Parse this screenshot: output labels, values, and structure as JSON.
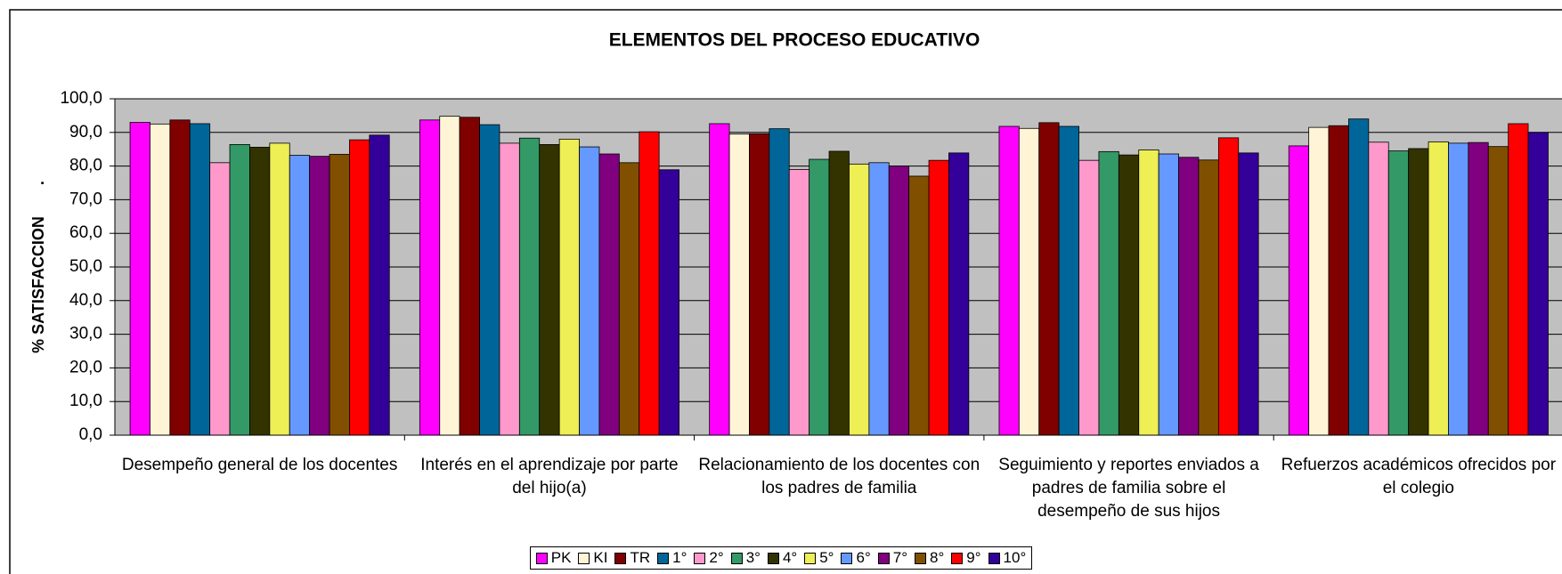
{
  "chart_data": {
    "type": "bar",
    "title": "ELEMENTOS DEL PROCESO EDUCATIVO",
    "y_label": "% SATISFACCION       .",
    "categories": [
      "Desempeño general de los docentes",
      "Interés en el aprendizaje por parte del hijo(a)",
      "Relacionamiento de los docentes con los padres de familia",
      "Seguimiento y reportes enviados a padres de familia sobre el desempeño de sus hijos",
      "Refuerzos académicos ofrecidos por el colegio"
    ],
    "series": [
      {
        "name": "PK",
        "color": "#ff00ff",
        "values": [
          93.0,
          93.7,
          92.6,
          91.8,
          86.0
        ]
      },
      {
        "name": "KI",
        "color": "#fff5d6",
        "values": [
          92.5,
          94.8,
          89.5,
          91.2,
          91.5
        ]
      },
      {
        "name": "TR",
        "color": "#800000",
        "values": [
          93.7,
          94.5,
          89.6,
          92.9,
          92.0
        ]
      },
      {
        "name": "1°",
        "color": "#006699",
        "values": [
          92.6,
          92.3,
          91.1,
          91.8,
          94.0
        ]
      },
      {
        "name": "2°",
        "color": "#ff99cc",
        "values": [
          81.0,
          86.8,
          79.0,
          81.7,
          87.1
        ]
      },
      {
        "name": "3°",
        "color": "#339966",
        "values": [
          86.4,
          88.3,
          82.0,
          84.3,
          84.5
        ]
      },
      {
        "name": "4°",
        "color": "#333300",
        "values": [
          85.6,
          86.4,
          84.4,
          83.3,
          85.2
        ]
      },
      {
        "name": "5°",
        "color": "#eeee55",
        "values": [
          86.8,
          88.0,
          80.6,
          84.8,
          87.2
        ]
      },
      {
        "name": "6°",
        "color": "#6699ff",
        "values": [
          83.2,
          85.7,
          81.0,
          83.6,
          86.8
        ]
      },
      {
        "name": "7°",
        "color": "#800080",
        "values": [
          82.9,
          83.6,
          80.0,
          82.6,
          87.0
        ]
      },
      {
        "name": "8°",
        "color": "#805000",
        "values": [
          83.5,
          81.0,
          77.0,
          81.8,
          85.8
        ]
      },
      {
        "name": "9°",
        "color": "#ff0000",
        "values": [
          87.8,
          90.2,
          81.7,
          88.4,
          92.6
        ]
      },
      {
        "name": "10°",
        "color": "#330099",
        "values": [
          89.2,
          78.9,
          83.9,
          83.9,
          90.0
        ]
      }
    ],
    "ylim": [
      0,
      100
    ],
    "yticks": [
      {
        "value": 0,
        "label": "0,0"
      },
      {
        "value": 10,
        "label": "10,0"
      },
      {
        "value": 20,
        "label": "20,0"
      },
      {
        "value": 30,
        "label": "30,0"
      },
      {
        "value": 40,
        "label": "40,0"
      },
      {
        "value": 50,
        "label": "50,0"
      },
      {
        "value": 60,
        "label": "60,0"
      },
      {
        "value": 70,
        "label": "70,0"
      },
      {
        "value": 80,
        "label": "80,0"
      },
      {
        "value": 90,
        "label": "90,0"
      },
      {
        "value": 100,
        "label": "100,0"
      }
    ],
    "grid": true,
    "legend": "bottom",
    "plot_background": "#c0c0c0"
  }
}
